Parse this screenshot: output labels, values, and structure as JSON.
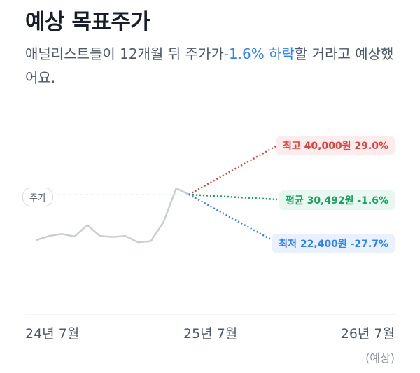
{
  "header": {
    "title": "예상 목표주가",
    "subtitle_before": "애널리스트들이 12개월 뒤 주가가",
    "subtitle_highlight": "-1.6% 하락",
    "subtitle_after": "할 거라고 예상했어요."
  },
  "chart": {
    "price_label": "주가",
    "targets": {
      "high": {
        "label": "최고 40,000원 29.0%",
        "color": "#d9443f"
      },
      "avg": {
        "label": "평균 30,492원 -1.6%",
        "color": "#1aa163"
      },
      "low": {
        "label": "최저 22,400원 -27.7%",
        "color": "#3182f6"
      }
    },
    "x_labels": [
      "24년 7월",
      "25년 7월",
      "26년 7월"
    ],
    "x_sub_label": "(예상)",
    "line_color": "#c9ced4"
  },
  "chart_data": {
    "type": "line",
    "series": [
      {
        "values": [
          22200,
          23000,
          23400,
          22900,
          25100,
          23000,
          22800,
          23000,
          21800,
          22000,
          25700,
          32200,
          31000
        ]
      }
    ],
    "targets": {
      "high": 40000,
      "average": 30492,
      "low": 22400
    },
    "x_ticks": [
      "24년 7월",
      "25년 7월",
      "26년 7월"
    ]
  }
}
